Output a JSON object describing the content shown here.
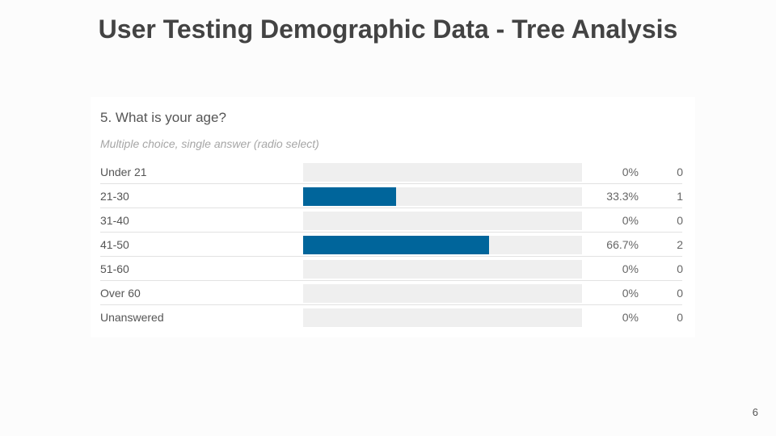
{
  "slide": {
    "title": "User Testing Demographic Data - Tree Analysis",
    "page_number": "6"
  },
  "colors": {
    "bar_fill": "#00659b",
    "bar_track": "#efefef"
  },
  "chart_data": {
    "type": "bar",
    "title": "5. What is your age?",
    "subtitle": "Multiple choice, single answer (radio select)",
    "categories": [
      "Under 21",
      "21-30",
      "31-40",
      "41-50",
      "51-60",
      "Over 60",
      "Unanswered"
    ],
    "percent_labels": [
      "0%",
      "33.3%",
      "0%",
      "66.7%",
      "0%",
      "0%",
      "0%"
    ],
    "percent_values": [
      0,
      33.3,
      0,
      66.7,
      0,
      0,
      0
    ],
    "counts": [
      0,
      1,
      0,
      2,
      0,
      0,
      0
    ],
    "xlim": [
      0,
      100
    ]
  }
}
